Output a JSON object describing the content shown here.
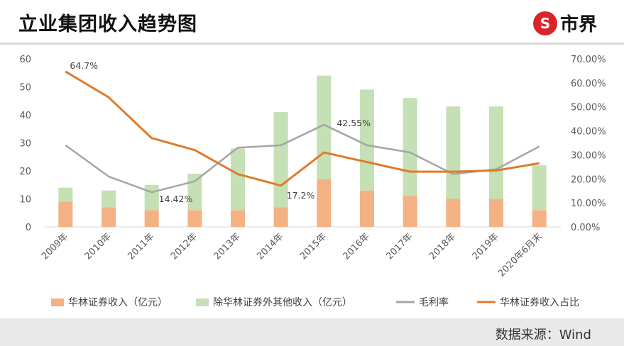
{
  "header": {
    "title": "立业集团收入趋势图",
    "logo_mark": "S",
    "logo_text": "市界"
  },
  "footer": {
    "source": "数据来源：Wind"
  },
  "colors": {
    "bar_huarin": "#f4b183",
    "bar_other": "#c5e0b4",
    "line_margin": "#a5a5a5",
    "line_share": "#e07b2a"
  },
  "chart_data": {
    "type": "bar",
    "categories": [
      "2009年",
      "2010年",
      "2011年",
      "2012年",
      "2013年",
      "2014年",
      "2015年",
      "2016年",
      "2017年",
      "2018年",
      "2019年",
      "2020年6月末"
    ],
    "ylim": [
      0,
      60
    ],
    "y_ticks": [
      "0",
      "10",
      "20",
      "30",
      "40",
      "50",
      "60"
    ],
    "y2lim": [
      0,
      0.7
    ],
    "y2_ticks": [
      "0.00%",
      "10.00%",
      "20.00%",
      "30.00%",
      "40.00%",
      "50.00%",
      "60.00%",
      "70.00%"
    ],
    "series": [
      {
        "name": "华林证券收入（亿元）",
        "kind": "bar",
        "color": "#f4b183",
        "values": [
          9,
          7,
          6,
          6,
          6,
          7,
          17,
          13,
          11,
          10,
          10,
          6
        ]
      },
      {
        "name": "除华林证券外其他收入（亿元）",
        "kind": "bar",
        "color": "#c5e0b4",
        "values": [
          5,
          6,
          9,
          13,
          22,
          34,
          37,
          36,
          35,
          33,
          33,
          16
        ]
      },
      {
        "name": "毛利率",
        "kind": "line",
        "axis": "right",
        "color": "#a5a5a5",
        "values": [
          0.34,
          0.21,
          0.1442,
          0.19,
          0.33,
          0.34,
          0.4255,
          0.34,
          0.31,
          0.22,
          0.24,
          0.335
        ]
      },
      {
        "name": "华林证券收入占比",
        "kind": "line",
        "axis": "right",
        "color": "#e07b2a",
        "values": [
          0.647,
          0.54,
          0.37,
          0.32,
          0.22,
          0.172,
          0.31,
          0.27,
          0.23,
          0.23,
          0.235,
          0.265
        ]
      }
    ],
    "annotations": [
      {
        "series": "华林证券收入占比",
        "index": 0,
        "text": "64.7%"
      },
      {
        "series": "毛利率",
        "index": 2,
        "text": "14.42%"
      },
      {
        "series": "华林证券收入占比",
        "index": 5,
        "text": "17.2%"
      },
      {
        "series": "毛利率",
        "index": 6,
        "text": "42.55%"
      }
    ],
    "legend_position": "bottom",
    "grid": false
  }
}
